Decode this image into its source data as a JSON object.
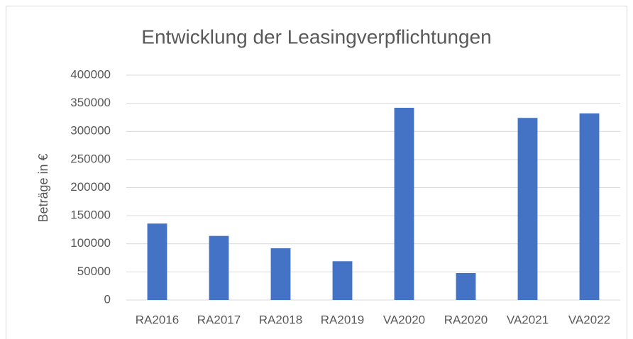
{
  "chart_data": {
    "type": "bar",
    "title": "Entwicklung der Leasingverpflichtungen",
    "y_label": "Beträge in €",
    "categories": [
      "RA2016",
      "RA2017",
      "RA2018",
      "RA2019",
      "VA2020",
      "RA2020",
      "VA2021",
      "VA2022"
    ],
    "values": [
      136000,
      114000,
      92000,
      69000,
      342000,
      48000,
      324000,
      332000
    ],
    "color": "#4472c4",
    "ylim": [
      0,
      400000
    ],
    "yticks": [
      0,
      50000,
      100000,
      150000,
      200000,
      250000,
      300000,
      350000,
      400000
    ],
    "grid": true
  }
}
